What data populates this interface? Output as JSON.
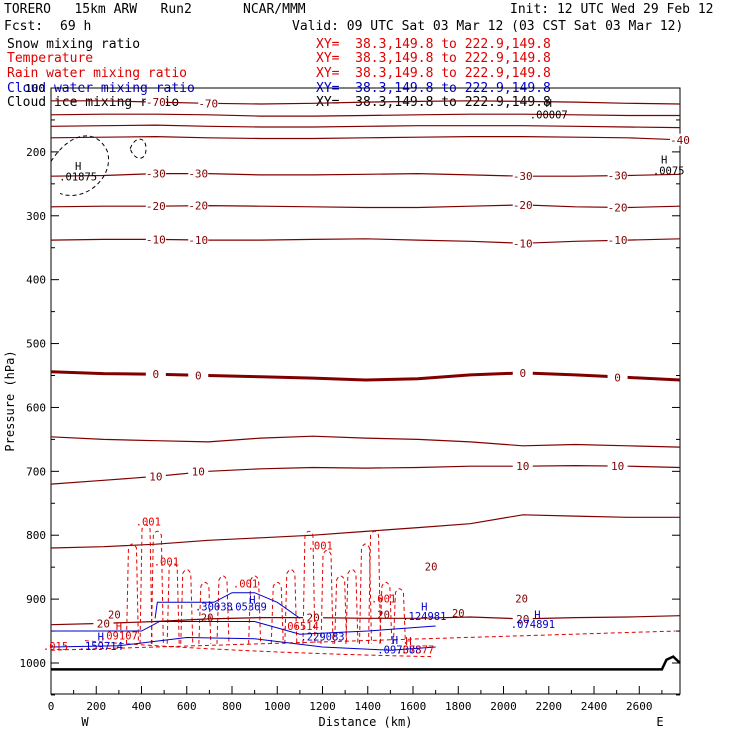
{
  "header": {
    "model": "TORERO   15km ARW   Run2",
    "org": "NCAR/MMM",
    "init": "Init: 12 UTC Wed 29 Feb 12",
    "fcst_label": "Fcst:",
    "fcst_value": "69 h",
    "valid": "Valid: 09 UTC Sat 03 Mar 12 (03 CST Sat 03 Mar 12)"
  },
  "colors": {
    "temperature": "#800000",
    "rain": "#e00000",
    "cloud_water": "#0000c8",
    "ice_snow": "#000000",
    "ground": "#000000"
  },
  "legend": [
    {
      "label": "Snow mixing ratio",
      "color": "#000000",
      "xy": "XY=  38.3,149.8 to 222.9,149.8",
      "xy_color": "#e00000"
    },
    {
      "label": "Temperature",
      "color": "#e00000",
      "xy": "XY=  38.3,149.8 to 222.9,149.8",
      "xy_color": "#e00000"
    },
    {
      "label": "Rain water mixing ratio",
      "color": "#e00000",
      "xy": "XY=  38.3,149.8 to 222.9,149.8",
      "xy_color": "#e00000"
    },
    {
      "label": "Cloud water mixing ratio",
      "color": "#0000c8",
      "xy": "XY=  38.3,149.8 to 222.9,149.8",
      "xy_color": "#0000c8"
    },
    {
      "label": "Cloud ice mixing ratio",
      "color": "#000000",
      "xy": "XY=  38.3,149.8 to 222.9,149.8",
      "xy_color": "#000000"
    }
  ],
  "chart_data": {
    "type": "cross-section contour",
    "xlabel": "Distance (km)",
    "ylabel": "Pressure (hPa)",
    "xlim": [
      0,
      2780
    ],
    "ylim": [
      1050,
      100
    ],
    "x_ticks": [
      0,
      200,
      400,
      600,
      800,
      1000,
      1200,
      1400,
      1600,
      1800,
      2000,
      2200,
      2400,
      2600
    ],
    "y_ticks": [
      200,
      300,
      400,
      500,
      600,
      700,
      800,
      900,
      1000
    ],
    "y_tick_labels": [
      "200",
      "300",
      "400",
      "500",
      "600",
      "700",
      "800",
      "900",
      "1000"
    ],
    "y_top_label": "100",
    "west_label": "W",
    "east_label": "E",
    "temperature_contours": [
      {
        "value": -70,
        "pressure": [
          120,
          120,
          122,
          124,
          125,
          124,
          122,
          121,
          120,
          121,
          122,
          124,
          125
        ],
        "label_at": [
          [
            440,
            -70
          ],
          [
            600,
            -70
          ]
        ],
        "labels": [
          "-70",
          "-70"
        ]
      },
      {
        "value": -60,
        "pressure": [
          142,
          141,
          141,
          142,
          144,
          144,
          143,
          142,
          141,
          141,
          142,
          143,
          143
        ]
      },
      {
        "value": -50,
        "pressure": [
          160,
          159,
          158,
          160,
          161,
          161,
          160,
          159,
          159,
          159,
          160,
          161,
          162
        ]
      },
      {
        "value": -40,
        "pressure": [
          178,
          177,
          176,
          178,
          179,
          179,
          178,
          177,
          176,
          176,
          177,
          178,
          181
        ],
        "labels": [
          "-40"
        ]
      },
      {
        "value": -30,
        "pressure": [
          238,
          237,
          234,
          234,
          236,
          236,
          235,
          234,
          236,
          238,
          238,
          237,
          235
        ],
        "labels": [
          "-30",
          "-30",
          "-30",
          "-30"
        ]
      },
      {
        "value": -20,
        "pressure": [
          286,
          285,
          285,
          284,
          285,
          286,
          287,
          287,
          285,
          283,
          286,
          287,
          285
        ],
        "labels": [
          "-20",
          "-20",
          "-20",
          "-20"
        ]
      },
      {
        "value": -10,
        "pressure": [
          338,
          337,
          337,
          338,
          338,
          337,
          336,
          338,
          340,
          343,
          340,
          338,
          336
        ],
        "labels": [
          "-10",
          "-10",
          "-10",
          "-10"
        ]
      },
      {
        "value": 0,
        "pressure": [
          544,
          547,
          548,
          550,
          552,
          554,
          557,
          555,
          549,
          546,
          549,
          553,
          557
        ],
        "labels": [
          "0",
          "0",
          "0",
          "0"
        ]
      },
      {
        "value": 10,
        "pressure": [
          646,
          650,
          652,
          654,
          648,
          645,
          648,
          650,
          654,
          660,
          658,
          660,
          662
        ]
      },
      {
        "value": 10,
        "pressure": [
          720,
          714,
          708,
          700,
          696,
          694,
          695,
          694,
          692,
          692,
          691,
          692,
          694
        ],
        "labels": [
          "10",
          "10",
          "10",
          "10"
        ]
      },
      {
        "value": 20,
        "pressure": [
          820,
          818,
          814,
          808,
          804,
          800,
          794,
          788,
          782,
          768,
          770,
          772,
          772
        ]
      },
      {
        "value": 20,
        "pressure": [
          940,
          938,
          935,
          931,
          929,
          929,
          930,
          930,
          928,
          931,
          929,
          928,
          926
        ],
        "labels": [
          "20",
          "20",
          "20"
        ]
      }
    ],
    "annotations": [
      {
        "text": "H",
        "x": 120,
        "p": 228
      },
      {
        "text": ".01875",
        "x": 120,
        "p": 245
      },
      {
        "text": "H",
        "x": 2710,
        "p": 218
      },
      {
        "text": ".0075",
        "x": 2730,
        "p": 235
      },
      {
        "text": "H",
        "x": 2200,
        "p": 130
      },
      {
        "text": ".00007",
        "x": 2200,
        "p": 148
      },
      {
        "text": "H",
        "x": 890,
        "p": 907
      },
      {
        "text": ".001",
        "x": 860,
        "p": 882
      },
      {
        "text": ".30038",
        "x": 720,
        "p": 918
      },
      {
        "text": ".05369",
        "x": 870,
        "p": 918
      },
      {
        "text": "H",
        "x": 1650,
        "p": 918
      },
      {
        "text": ".124981",
        "x": 1650,
        "p": 933
      },
      {
        "text": "H",
        "x": 2150,
        "p": 930
      },
      {
        "text": ".074891",
        "x": 2130,
        "p": 945
      },
      {
        "text": "H",
        "x": 220,
        "p": 965
      },
      {
        "text": ".159714",
        "x": 220,
        "p": 980
      },
      {
        "text": ".229083",
        "x": 1200,
        "p": 965
      },
      {
        "text": "H",
        "x": 1520,
        "p": 970
      },
      {
        "text": ".097388",
        "x": 1540,
        "p": 985
      },
      {
        "text": "H",
        "x": 300,
        "p": 948
      },
      {
        "text": ".09107",
        "x": 300,
        "p": 963
      },
      {
        "text": ".06514",
        "x": 1100,
        "p": 948
      },
      {
        "text": "H",
        "x": 1580,
        "p": 972
      },
      {
        "text": ".07377",
        "x": 1610,
        "p": 985
      },
      {
        "text": ".015",
        "x": 20,
        "p": 980
      },
      {
        "text": ".001",
        "x": 430,
        "p": 785
      },
      {
        "text": ".001",
        "x": 510,
        "p": 847
      },
      {
        "text": ".001",
        "x": 1190,
        "p": 822
      },
      {
        "text": ".001",
        "x": 1470,
        "p": 905
      },
      {
        "text": "20",
        "x": 1680,
        "p": 855
      },
      {
        "text": "20",
        "x": 2080,
        "p": 905
      },
      {
        "text": "20",
        "x": 280,
        "p": 930
      },
      {
        "text": "20",
        "x": 690,
        "p": 935
      },
      {
        "text": "20",
        "x": 1470,
        "p": 930
      },
      {
        "text": "20",
        "x": 1800,
        "p": 928
      }
    ]
  }
}
